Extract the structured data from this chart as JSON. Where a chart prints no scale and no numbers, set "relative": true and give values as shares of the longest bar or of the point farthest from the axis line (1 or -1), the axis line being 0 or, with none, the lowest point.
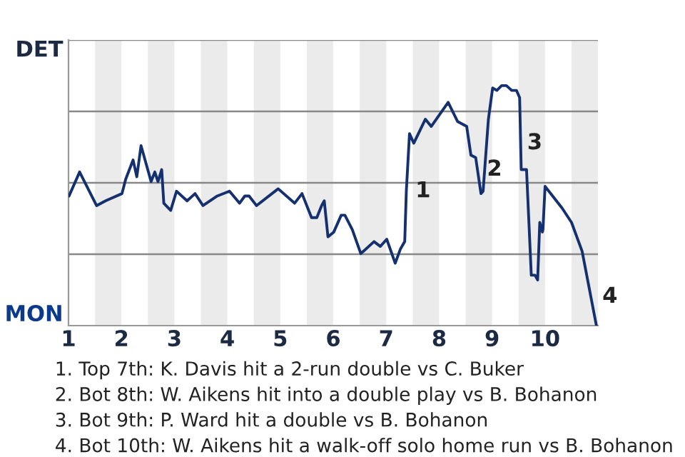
{
  "chart_data": {
    "type": "line",
    "relative": true,
    "xlim": [
      1,
      11
    ],
    "xticks": [
      1,
      2,
      3,
      4,
      5,
      6,
      7,
      8,
      9,
      10
    ],
    "grid": "y",
    "marker": "none",
    "line_style": "solid",
    "bands": [
      {
        "axis": "x",
        "from": 1.5,
        "to": 2,
        "color": "#ebebeb"
      },
      {
        "axis": "x",
        "from": 2.5,
        "to": 3,
        "color": "#ebebeb"
      },
      {
        "axis": "x",
        "from": 3.5,
        "to": 4,
        "color": "#ebebeb"
      },
      {
        "axis": "x",
        "from": 4.5,
        "to": 5,
        "color": "#ebebeb"
      },
      {
        "axis": "x",
        "from": 5.5,
        "to": 6,
        "color": "#ebebeb"
      },
      {
        "axis": "x",
        "from": 6.5,
        "to": 7,
        "color": "#ebebeb"
      },
      {
        "axis": "x",
        "from": 7.5,
        "to": 8,
        "color": "#ebebeb"
      },
      {
        "axis": "x",
        "from": 8.5,
        "to": 9,
        "color": "#ebebeb"
      },
      {
        "axis": "x",
        "from": 9.5,
        "to": 10,
        "color": "#ebebeb"
      },
      {
        "axis": "x",
        "from": 10.5,
        "to": 11,
        "color": "#ebebeb"
      }
    ],
    "series": [
      {
        "color": "#14306e",
        "x": [
          1.01,
          1.21,
          1.53,
          1.7,
          2.01,
          2.08,
          2.22,
          2.29,
          2.37,
          2.56,
          2.63,
          2.69,
          2.76,
          2.8,
          2.93,
          3.04,
          3.24,
          3.39,
          3.54,
          3.81,
          4.04,
          4.23,
          4.33,
          4.41,
          4.55,
          4.96,
          5.27,
          5.41,
          5.59,
          5.69,
          5.78,
          5.83,
          5.9,
          6.01,
          6.15,
          6.22,
          6.36,
          6.52,
          6.77,
          6.89,
          7.01,
          7.17,
          7.27,
          7.35,
          7.38,
          7.44,
          7.52,
          7.74,
          7.85,
          8.17,
          8.35,
          8.52,
          8.6,
          8.69,
          8.79,
          8.83,
          8.93,
          9.01,
          9.09,
          9.18,
          9.27,
          9.37,
          9.46,
          9.52,
          9.55,
          9.65,
          9.74,
          9.81,
          9.86,
          9.9,
          9.95,
          9.96,
          10.0,
          10.32,
          10.5,
          10.7,
          10.97
        ],
        "values": [
          0.54,
          0.64,
          0.5,
          0.52,
          0.55,
          0.61,
          0.69,
          0.62,
          0.75,
          0.6,
          0.64,
          0.6,
          0.65,
          0.51,
          0.48,
          0.56,
          0.52,
          0.55,
          0.5,
          0.54,
          0.56,
          0.51,
          0.54,
          0.54,
          0.5,
          0.57,
          0.51,
          0.55,
          0.45,
          0.45,
          0.5,
          0.52,
          0.37,
          0.39,
          0.46,
          0.46,
          0.4,
          0.3,
          0.35,
          0.33,
          0.36,
          0.26,
          0.32,
          0.35,
          0.56,
          0.8,
          0.76,
          0.86,
          0.83,
          0.93,
          0.85,
          0.83,
          0.71,
          0.7,
          0.55,
          0.56,
          0.86,
          0.99,
          0.98,
          1.0,
          1.0,
          0.98,
          0.98,
          0.95,
          0.65,
          0.65,
          0.21,
          0.21,
          0.19,
          0.43,
          0.39,
          0.4,
          0.58,
          0.49,
          0.43,
          0.31,
          0.0
        ]
      }
    ],
    "annotations": [
      {
        "text": "1",
        "x": 7.44,
        "y": 0.56
      },
      {
        "text": "2",
        "x": 8.79,
        "y": 0.65
      },
      {
        "text": "3",
        "x": 9.55,
        "y": 0.76
      },
      {
        "text": "4",
        "x": 10.97,
        "y": 0.12
      },
      "DET",
      "MON",
      "1. Top 7th: K. Davis hit a 2-run double vs C. Buker",
      "2. Bot 8th: W. Aikens hit into a double play vs B. Bohanon",
      "3. Bot 9th: P. Ward hit a double vs B. Bohanon",
      "4. Bot 10th: W. Aikens hit a walk-off solo home run vs B. Bohanon"
    ]
  }
}
